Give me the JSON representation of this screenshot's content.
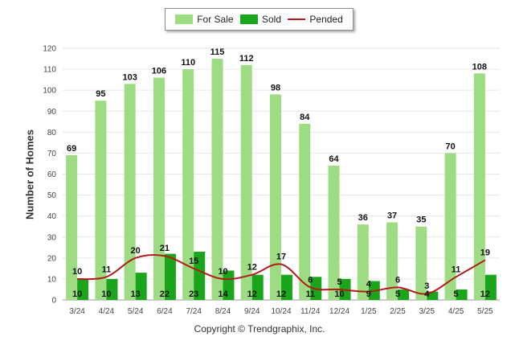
{
  "legend": {
    "for_sale": "For Sale",
    "sold": "Sold",
    "pended": "Pended"
  },
  "credit": "Copyright © Trendgraphix, Inc.",
  "colors": {
    "for_sale": "#9ddc82",
    "sold": "#1aa51a",
    "pended": "#b51a1a",
    "grid": "#e6e6e6"
  },
  "chart_data": {
    "type": "bar",
    "title": "",
    "xlabel": "",
    "ylabel": "Number of Homes",
    "ylim": [
      0,
      120
    ],
    "yticks": [
      0,
      10,
      20,
      30,
      40,
      50,
      60,
      70,
      80,
      90,
      100,
      110,
      120
    ],
    "grid": true,
    "legend_position": "top-center",
    "categories": [
      "3/24",
      "4/24",
      "5/24",
      "6/24",
      "7/24",
      "8/24",
      "9/24",
      "10/24",
      "11/24",
      "12/24",
      "1/25",
      "2/25",
      "3/25",
      "4/25",
      "5/25"
    ],
    "series": [
      {
        "name": "For Sale",
        "type": "bar",
        "values": [
          69,
          95,
          103,
          106,
          110,
          115,
          112,
          98,
          84,
          64,
          36,
          37,
          35,
          70,
          108
        ]
      },
      {
        "name": "Sold",
        "type": "bar",
        "values": [
          10,
          10,
          13,
          22,
          23,
          14,
          12,
          12,
          11,
          10,
          9,
          5,
          4,
          5,
          12
        ]
      },
      {
        "name": "Pended",
        "type": "line",
        "values": [
          10,
          11,
          20,
          21,
          15,
          10,
          12,
          17,
          6,
          5,
          4,
          6,
          3,
          11,
          19
        ]
      }
    ]
  }
}
